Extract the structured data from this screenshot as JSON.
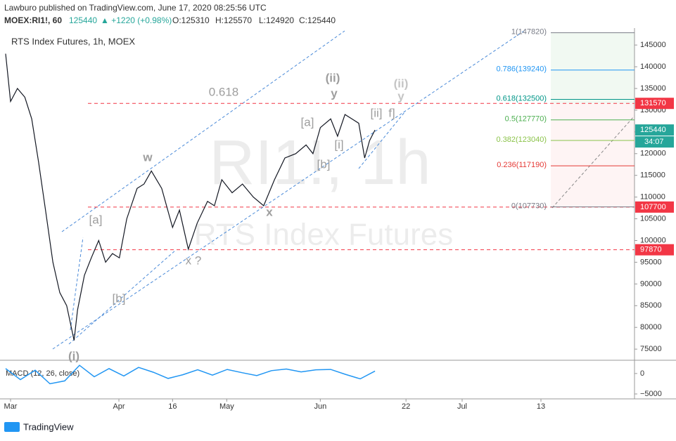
{
  "header": {
    "publisher": "Lawburo published on TradingView.com, June 17, 2020 08:25:56 UTC",
    "symbol": "MOEX:RI1!, 60",
    "last": "125440",
    "change": "▲ +1220 (+0.98%)",
    "open": "O:125310",
    "high": "H:125570",
    "low": "L:124920",
    "close": "C:125440"
  },
  "footer": {
    "brand": "TradingView"
  },
  "chart_data": [
    {
      "type": "line",
      "title": "RTS Index Futures, 1h, MOEX",
      "watermark": "RI1!, 1h",
      "watermark_sub": "RTS Index Futures",
      "xlim": [
        -1.43,
        126.7
      ],
      "xticks": [
        {
          "value": 0,
          "label": "Mar"
        },
        {
          "value": 22,
          "label": "Apr"
        },
        {
          "value": 32.9,
          "label": "16"
        },
        {
          "value": 43.9,
          "label": "May"
        },
        {
          "value": 62.9,
          "label": "Jun"
        },
        {
          "value": 80.3,
          "label": "22"
        },
        {
          "value": 91.7,
          "label": "Jul"
        },
        {
          "value": 107.7,
          "label": "13"
        }
      ],
      "ylim": [
        72600,
        148900
      ],
      "yticks": [
        75000,
        80000,
        85000,
        90000,
        95000,
        100000,
        105000,
        110000,
        115000,
        120000,
        125000,
        130000,
        135000,
        140000,
        145000
      ],
      "grid": false,
      "series": [
        {
          "name": "RTS Index Futures",
          "color": "#131722",
          "x": [
            -1,
            0,
            1.4,
            2.9,
            4.3,
            5.7,
            7.1,
            8.6,
            10,
            11.4,
            12.9,
            13.6,
            15,
            16.4,
            17.9,
            19.3,
            20.7,
            22.1,
            23.6,
            25.7,
            27.1,
            28.6,
            30.7,
            32.9,
            34.3,
            36.1,
            37.9,
            40,
            41.4,
            42.9,
            45,
            47.1,
            49.3,
            51.4,
            53.6,
            55.7,
            57.9,
            60,
            61.4,
            62.9,
            65,
            66.4,
            67.9,
            69.3,
            70.7,
            71.9,
            72.9,
            74
          ],
          "values": [
            143000,
            132000,
            135000,
            133000,
            128000,
            118000,
            107000,
            95000,
            88000,
            85000,
            77000,
            84000,
            92000,
            96000,
            100000,
            95000,
            97000,
            96000,
            105000,
            112000,
            113000,
            116000,
            112000,
            103000,
            107000,
            98000,
            104000,
            109000,
            108000,
            114000,
            111000,
            113000,
            110000,
            108000,
            114000,
            119000,
            120000,
            122000,
            120000,
            126000,
            128000,
            124000,
            129000,
            128000,
            127000,
            119000,
            123000,
            125440
          ]
        }
      ],
      "levels": [
        {
          "value": 131570,
          "color": "#f23645"
        },
        {
          "value": 107700,
          "color": "#f23645"
        },
        {
          "value": 97870,
          "color": "#f23645"
        }
      ],
      "price_labels": [
        {
          "value": 131570,
          "color": "#f23645"
        },
        {
          "value": 125440,
          "color": "#26a69a"
        },
        {
          "value": 107700,
          "color": "#f23645"
        },
        {
          "value": 97870,
          "color": "#f23645"
        }
      ],
      "countdown": "34:07",
      "fib_levels": [
        {
          "label": "1(147820)",
          "value": 147820,
          "color": "#787b86"
        },
        {
          "label": "0.786(139240)",
          "value": 139240,
          "color": "#2196f3"
        },
        {
          "label": "0.618(132500)",
          "value": 132500,
          "color": "#009688"
        },
        {
          "label": "0.5(127770)",
          "value": 127770,
          "color": "#4caf50"
        },
        {
          "label": "0.382(123040)",
          "value": 123040,
          "color": "#8bc34a"
        },
        {
          "label": "0.236(117190)",
          "value": 117190,
          "color": "#e53935"
        },
        {
          "label": "0(107730)",
          "value": 107730,
          "color": "#787b86"
        }
      ],
      "annotations": [
        "0.618",
        "(ii)",
        "y",
        "(ii)",
        "y",
        "[a]",
        "[ii]",
        "f]",
        "[i]",
        "[b]",
        "w",
        "x",
        "[a]",
        "x ?",
        "[b]",
        "(i)"
      ]
    },
    {
      "type": "line",
      "title": "MACD (12, 26, close)",
      "ylim": [
        -6200,
        2900
      ],
      "yticks": [
        0,
        {
          "value": -5000,
          "label": "−5000"
        }
      ],
      "series": [
        {
          "name": "MACD",
          "color": "#2196f3",
          "x": [
            -1,
            2,
            5,
            8,
            11,
            14,
            17,
            20,
            23,
            26,
            29,
            32,
            35,
            38,
            41,
            44,
            47,
            50,
            53,
            56,
            59,
            62,
            65,
            68,
            71,
            74
          ],
          "values": [
            1200,
            -1500,
            800,
            -2500,
            -1800,
            2000,
            -800,
            1200,
            -600,
            1500,
            300,
            -1200,
            -300,
            900,
            -400,
            1000,
            200,
            -500,
            700,
            1100,
            400,
            900,
            1000,
            -200,
            -1300,
            600
          ]
        }
      ]
    }
  ]
}
